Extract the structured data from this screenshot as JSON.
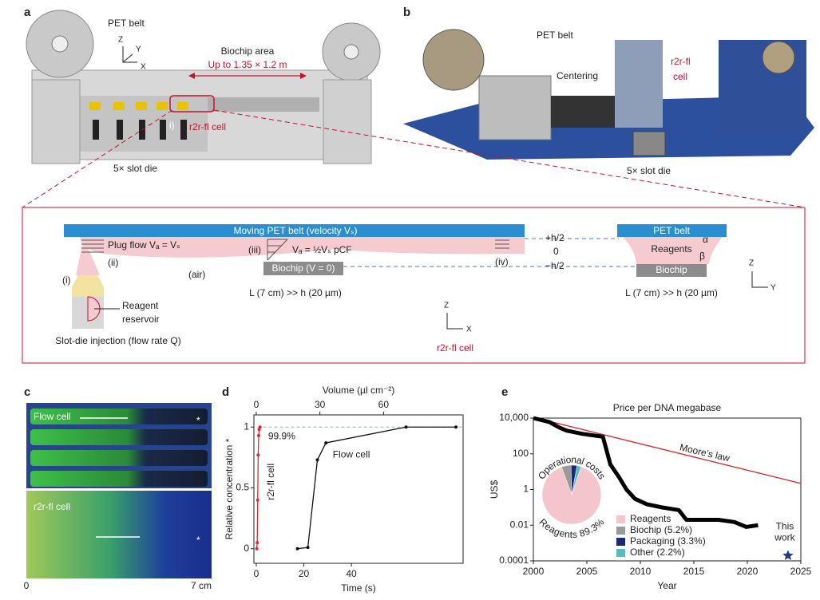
{
  "panel_a": {
    "label": "a",
    "pet_belt": "PET belt",
    "axes": [
      "Z",
      "Y",
      "X"
    ],
    "biochip_area": "Biochip area",
    "size": "Up to 1.35 × 1.2 m",
    "marker": "i)",
    "cell": "r2r-fl cell",
    "slot_die": "5× slot die"
  },
  "panel_b": {
    "label": "b",
    "pet_belt": "PET belt",
    "centering": "Centering",
    "cell": [
      "r2r-fl",
      "cell"
    ],
    "slot_die": "5× slot die"
  },
  "schematic": {
    "belt": "Moving PET belt (velocity Vₛ)",
    "plug_flow": "Plug flow Vₐ = Vₛ",
    "pcf": "Vₐ = ½Vₛ  pCF",
    "steps": [
      "(i)",
      "(ii)",
      "(iii)",
      "(iv)"
    ],
    "air": "(air)",
    "heights": [
      "+h/2",
      "0",
      "−h/2"
    ],
    "biochip": "Biochip (V = 0)",
    "length": "L (7 cm) >> h (20 µm)",
    "reservoir": [
      "Reagent",
      "reservoir"
    ],
    "injection": "Slot-die injection (flow rate Q)",
    "axes": [
      "Z",
      "X"
    ],
    "caption": "r2r-fl cell",
    "side": {
      "belt": "PET belt",
      "reagents": "Reagents",
      "biochip": "Biochip",
      "angles": [
        "α",
        "β"
      ],
      "length": "L (7 cm) >> h (20 µm)",
      "axes": [
        "Z",
        "Y"
      ]
    }
  },
  "panel_c": {
    "label": "c",
    "flow_cell": "Flow cell",
    "cell": "r2r-fl cell",
    "star": "*",
    "scale": [
      "0",
      "7 cm"
    ]
  },
  "chart_data": [
    {
      "type": "line",
      "label": "d",
      "ylabel": "Relative concentration *",
      "xlabel": "Time (s)",
      "x2label": "Volume (µl cm⁻²)",
      "xlim": [
        -1,
        87
      ],
      "xticks": [
        0,
        20,
        40
      ],
      "x2lim": [
        -1.1,
        97.5
      ],
      "x2ticks": [
        0,
        30,
        60
      ],
      "ylim": [
        -0.12,
        1.1
      ],
      "yticks": [
        0,
        0.5,
        1
      ],
      "reference_line": 1,
      "annotation": "99.9%",
      "series": [
        {
          "name": "r2r-fl cell",
          "color": "#e0282e",
          "x": [
            0.2,
            0.4,
            0.6,
            0.8,
            1.0,
            1.2,
            1.6
          ],
          "values": [
            0,
            0.05,
            0.4,
            0.77,
            0.93,
            0.98,
            1.0
          ]
        },
        {
          "name": "Flow cell",
          "color": "#111111",
          "x": [
            17.3,
            21.7,
            25.7,
            29.3,
            63,
            84
          ],
          "values": [
            0,
            0.01,
            0.73,
            0.87,
            1.0,
            1.0
          ]
        }
      ]
    },
    {
      "type": "line",
      "label": "e",
      "title": "Price per DNA megabase",
      "ylabel": "US$",
      "xlabel": "Year",
      "log_y": true,
      "xlim": [
        2000,
        2025
      ],
      "xticks": [
        2000,
        2005,
        2010,
        2015,
        2020,
        2025
      ],
      "ylim": [
        0.0001,
        10000
      ],
      "yticks": [
        0.0001,
        0.01,
        1,
        100,
        {
          "value": 10000,
          "label": "10,000"
        }
      ],
      "series": [
        {
          "name": "Moore’s law",
          "color": "#d62728",
          "x": [
            2000,
            2025
          ],
          "values": [
            11000,
            2.2
          ]
        },
        {
          "color": "#000000",
          "x": [
            2000,
            2001.5,
            2002.4,
            2003.1,
            2004.6,
            2006.5,
            2007.2,
            2008,
            2008.7,
            2009.5,
            2010.6,
            2012,
            2013.6,
            2014.3,
            2015.8,
            2017.3,
            2018.8,
            2019.9,
            2021
          ],
          "values": [
            10000,
            6000,
            3000,
            2000,
            1300,
            900,
            25,
            5,
            1,
            0.3,
            0.15,
            0.1,
            0.07,
            0.02,
            0.02,
            0.02,
            0.015,
            0.008,
            0.01
          ]
        }
      ],
      "this_work": {
        "label": [
          "This",
          "work"
        ],
        "x": 2023.8,
        "value": 0.0002,
        "color": "#1f3a8a"
      },
      "pie": {
        "type": "pie",
        "title": "Operational costs",
        "annotation": "Reagents 89.3%",
        "labels": [
          "Reagents",
          "Biochip (5.2%)",
          "Packaging (3.3%)",
          "Other (2.2%)"
        ],
        "values": [
          89.3,
          5.2,
          3.3,
          2.2
        ],
        "colors": [
          "#f4c5cb",
          "#9a9a9a",
          "#1b2a78",
          "#5bbcc0"
        ]
      }
    }
  ]
}
